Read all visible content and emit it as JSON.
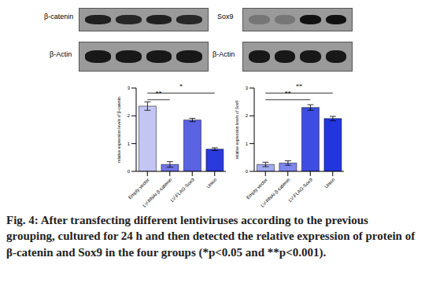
{
  "chart_data": [
    {
      "type": "bar",
      "ylabel": "relative expression levels of β-catenin",
      "categories": [
        "Empty vector",
        "LV-RNAi-β-catenin",
        "LV-FLAG-Sox9",
        "Union"
      ],
      "values": [
        2.35,
        0.25,
        1.85,
        0.8
      ],
      "errors": [
        0.15,
        0.1,
        0.06,
        0.05
      ],
      "colors": [
        "#c3c6f4",
        "#6f74e6",
        "#5a63e2",
        "#2a3ade"
      ],
      "ylim": [
        0,
        3
      ],
      "yticks": [
        0,
        1,
        2,
        3
      ],
      "annotations": [
        {
          "from": "Empty vector",
          "to": "LV-RNAi-β-catenin",
          "label": "**"
        },
        {
          "from": "Empty vector",
          "to": "Union",
          "label": "*"
        }
      ]
    },
    {
      "type": "bar",
      "ylabel": "relative expression levels of Sox9",
      "categories": [
        "Empty vector",
        "LV-RNAi-β-catenin",
        "LV-FLAG-Sox9",
        "Union"
      ],
      "values": [
        0.25,
        0.3,
        2.3,
        1.9
      ],
      "errors": [
        0.08,
        0.08,
        0.1,
        0.08
      ],
      "colors": [
        "#a3aaf2",
        "#7d86ee",
        "#3d4de2",
        "#2236e0"
      ],
      "ylim": [
        0,
        3
      ],
      "yticks": [
        0,
        1,
        2,
        3
      ],
      "annotations": [
        {
          "from": "Empty vector",
          "to": "LV-FLAG-Sox9",
          "label": "**"
        },
        {
          "from": "Empty vector",
          "to": "Union",
          "label": "**"
        }
      ]
    }
  ],
  "figure": {
    "caption": "Fig. 4: After transfecting different lentiviruses according to the previous grouping, cultured for 24 h and then detected the relative expression of protein of β-catenin and Sox9 in the four groups (*p<0.05 and **p<0.001).",
    "blots": [
      {
        "labels": [
          "β-catenin",
          "β-Actin"
        ]
      },
      {
        "labels": [
          "Sox9",
          "β-Actin"
        ]
      }
    ]
  }
}
